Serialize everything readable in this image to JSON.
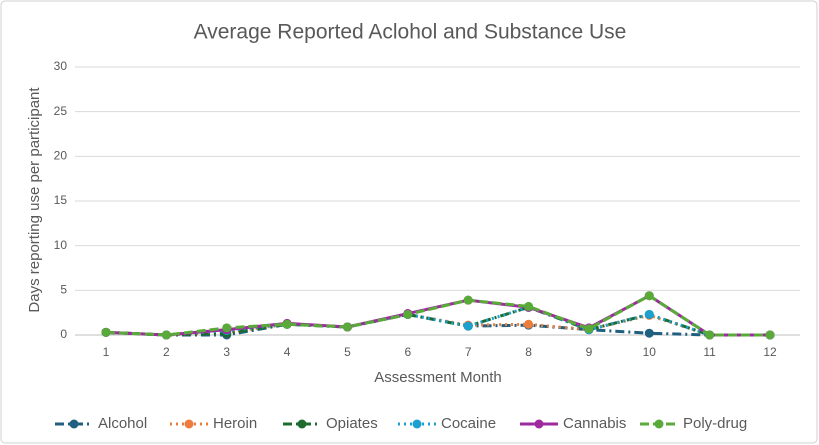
{
  "chart_data": {
    "type": "line",
    "title": "Average Reported  Aclohol and Substance Use",
    "x_label": "Assessment Month",
    "y_label": "Days reporting use per participant",
    "categories": [
      "1",
      "2",
      "3",
      "4",
      "5",
      "6",
      "7",
      "8",
      "9",
      "10",
      "11",
      "12"
    ],
    "ylim": [
      0,
      30
    ],
    "yticks": [
      0,
      5,
      10,
      15,
      20,
      25,
      30
    ],
    "grid": true,
    "legend": "bottom",
    "series": [
      {
        "name": "Alcohol",
        "color": "#1f5f80",
        "dash": "dashdot",
        "values": [
          0.3,
          0,
          0,
          1.2,
          0.9,
          2.3,
          1.0,
          1.1,
          0.6,
          0.2,
          0,
          0
        ]
      },
      {
        "name": "Heroin",
        "color": "#ee7d3b",
        "dash": "dot",
        "values": [
          0.3,
          0,
          0.3,
          1.2,
          0.9,
          2.3,
          1.1,
          1.2,
          0.6,
          2.2,
          0,
          0
        ]
      },
      {
        "name": "Opiates",
        "color": "#1e6b2e",
        "dash": "dashdot",
        "values": [
          0.3,
          0,
          0.2,
          1.2,
          0.9,
          2.3,
          1.0,
          3.1,
          0.6,
          2.3,
          0,
          0
        ]
      },
      {
        "name": "Cocaine",
        "color": "#1ca0d0",
        "dash": "dot",
        "values": [
          0.3,
          0,
          0.5,
          1.2,
          0.9,
          2.3,
          1.0,
          3.1,
          0.6,
          2.3,
          0,
          0
        ]
      },
      {
        "name": "Cannabis",
        "color": "#9e2aa0",
        "dash": "solid",
        "values": [
          0.3,
          0,
          0.6,
          1.3,
          0.9,
          2.4,
          3.9,
          3.1,
          0.8,
          4.4,
          0,
          0
        ]
      },
      {
        "name": "Poly-drug",
        "color": "#5aaa3a",
        "dash": "dash",
        "values": [
          0.3,
          0,
          0.8,
          1.2,
          0.9,
          2.3,
          3.9,
          3.2,
          0.7,
          4.4,
          0,
          0
        ]
      }
    ]
  }
}
